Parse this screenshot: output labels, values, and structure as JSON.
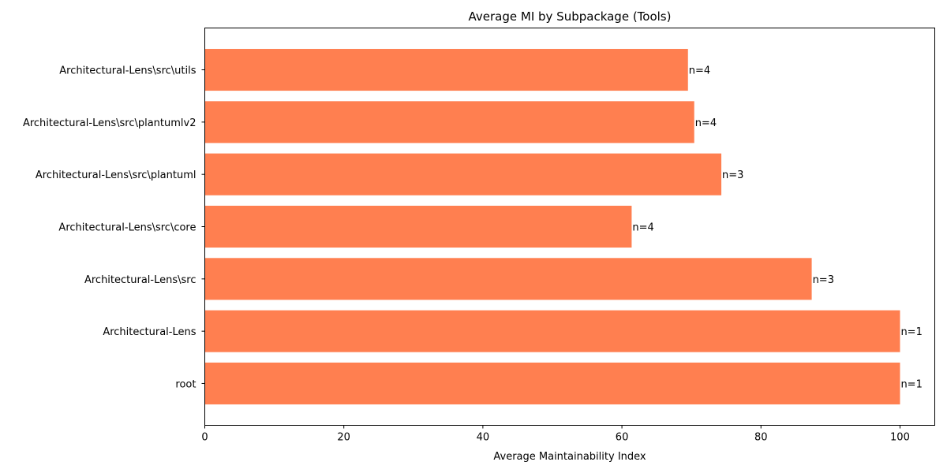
{
  "chart_data": {
    "type": "bar",
    "orientation": "horizontal",
    "title": "Average MI by Subpackage (Tools)",
    "xlabel": "Average Maintainability Index",
    "ylabel": "",
    "xlim": [
      0,
      105
    ],
    "xticks": [
      0,
      20,
      40,
      60,
      80,
      100
    ],
    "xtick_labels": [
      "0",
      "20",
      "40",
      "60",
      "80",
      "100"
    ],
    "grid": false,
    "bar_color": "#ff7f50",
    "categories": [
      "root",
      "Architectural-Lens",
      "Architectural-Lens\\src",
      "Architectural-Lens\\src\\core",
      "Architectural-Lens\\src\\plantuml",
      "Architectural-Lens\\src\\plantumlv2",
      "Architectural-Lens\\src\\utils"
    ],
    "values": [
      100,
      100,
      87.3,
      61.4,
      74.3,
      70.4,
      69.5
    ],
    "data_labels": [
      "n=1",
      "n=1",
      "n=3",
      "n=4",
      "n=3",
      "n=4",
      "n=4"
    ]
  }
}
